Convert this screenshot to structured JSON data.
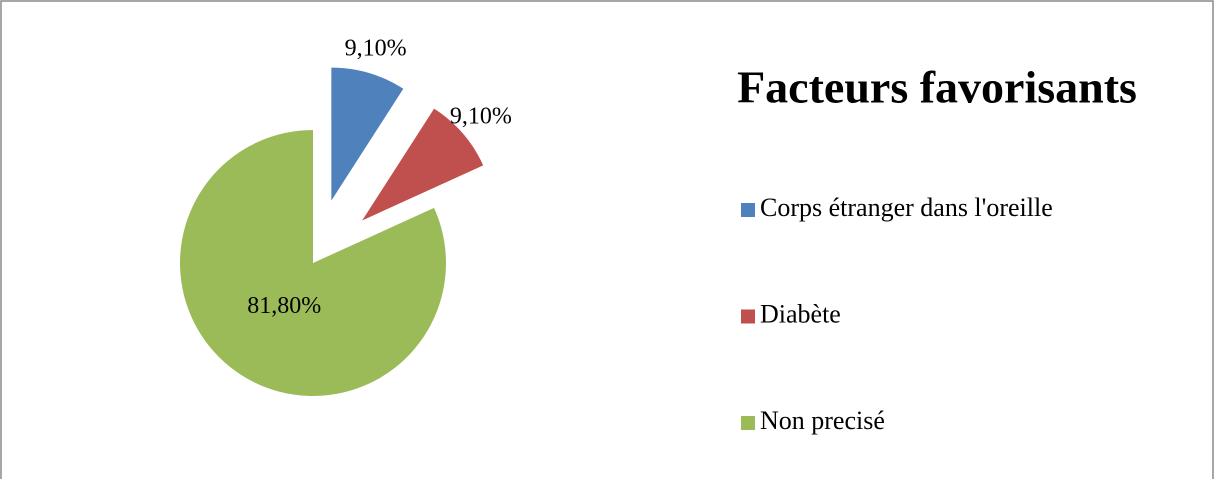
{
  "chart_data": {
    "type": "pie",
    "title": "Facteurs favorisants",
    "categories": [
      "Corps étranger dans l'oreille",
      "Diabète",
      "Non precisé"
    ],
    "values": [
      9.1,
      9.1,
      81.8
    ],
    "value_labels": [
      "9,10%",
      "9,10%",
      "81,80%"
    ],
    "colors": [
      "#4f81bd",
      "#c0504d",
      "#9bbb59"
    ],
    "exploded": [
      true,
      true,
      false
    ],
    "legend": "right"
  }
}
